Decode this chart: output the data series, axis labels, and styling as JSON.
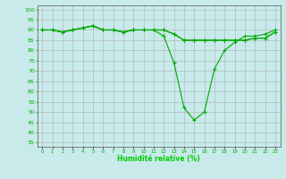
{
  "x": [
    0,
    1,
    2,
    3,
    4,
    5,
    6,
    7,
    8,
    9,
    10,
    11,
    12,
    13,
    14,
    15,
    16,
    17,
    18,
    19,
    20,
    21,
    22,
    23
  ],
  "line1": [
    90,
    90,
    89,
    90,
    91,
    92,
    90,
    90,
    89,
    90,
    90,
    90,
    90,
    88,
    85,
    85,
    85,
    85,
    85,
    85,
    85,
    86,
    86,
    89
  ],
  "line2": [
    90,
    90,
    89,
    90,
    91,
    92,
    90,
    90,
    89,
    90,
    90,
    90,
    87,
    74,
    52,
    46,
    50,
    71,
    80,
    84,
    87,
    87,
    88,
    90
  ],
  "line3": [
    90,
    90,
    89,
    90,
    91,
    92,
    90,
    90,
    89,
    90,
    90,
    90,
    90,
    88,
    85,
    85,
    85,
    85,
    85,
    85,
    85,
    86,
    86,
    89
  ],
  "bg_color": "#c8eaea",
  "grid_color": "#b0b0b0",
  "line_color": "#00aa00",
  "xlabel": "Humidité relative (%)",
  "xlabel_color": "#00cc00",
  "tick_color": "#00aa00",
  "ylim": [
    33,
    102
  ],
  "xlim": [
    -0.5,
    23.5
  ],
  "yticks": [
    35,
    40,
    45,
    50,
    55,
    60,
    65,
    70,
    75,
    80,
    85,
    90,
    95,
    100
  ],
  "xticks": [
    0,
    1,
    2,
    3,
    4,
    5,
    6,
    7,
    8,
    9,
    10,
    11,
    12,
    13,
    14,
    15,
    16,
    17,
    18,
    19,
    20,
    21,
    22,
    23
  ]
}
